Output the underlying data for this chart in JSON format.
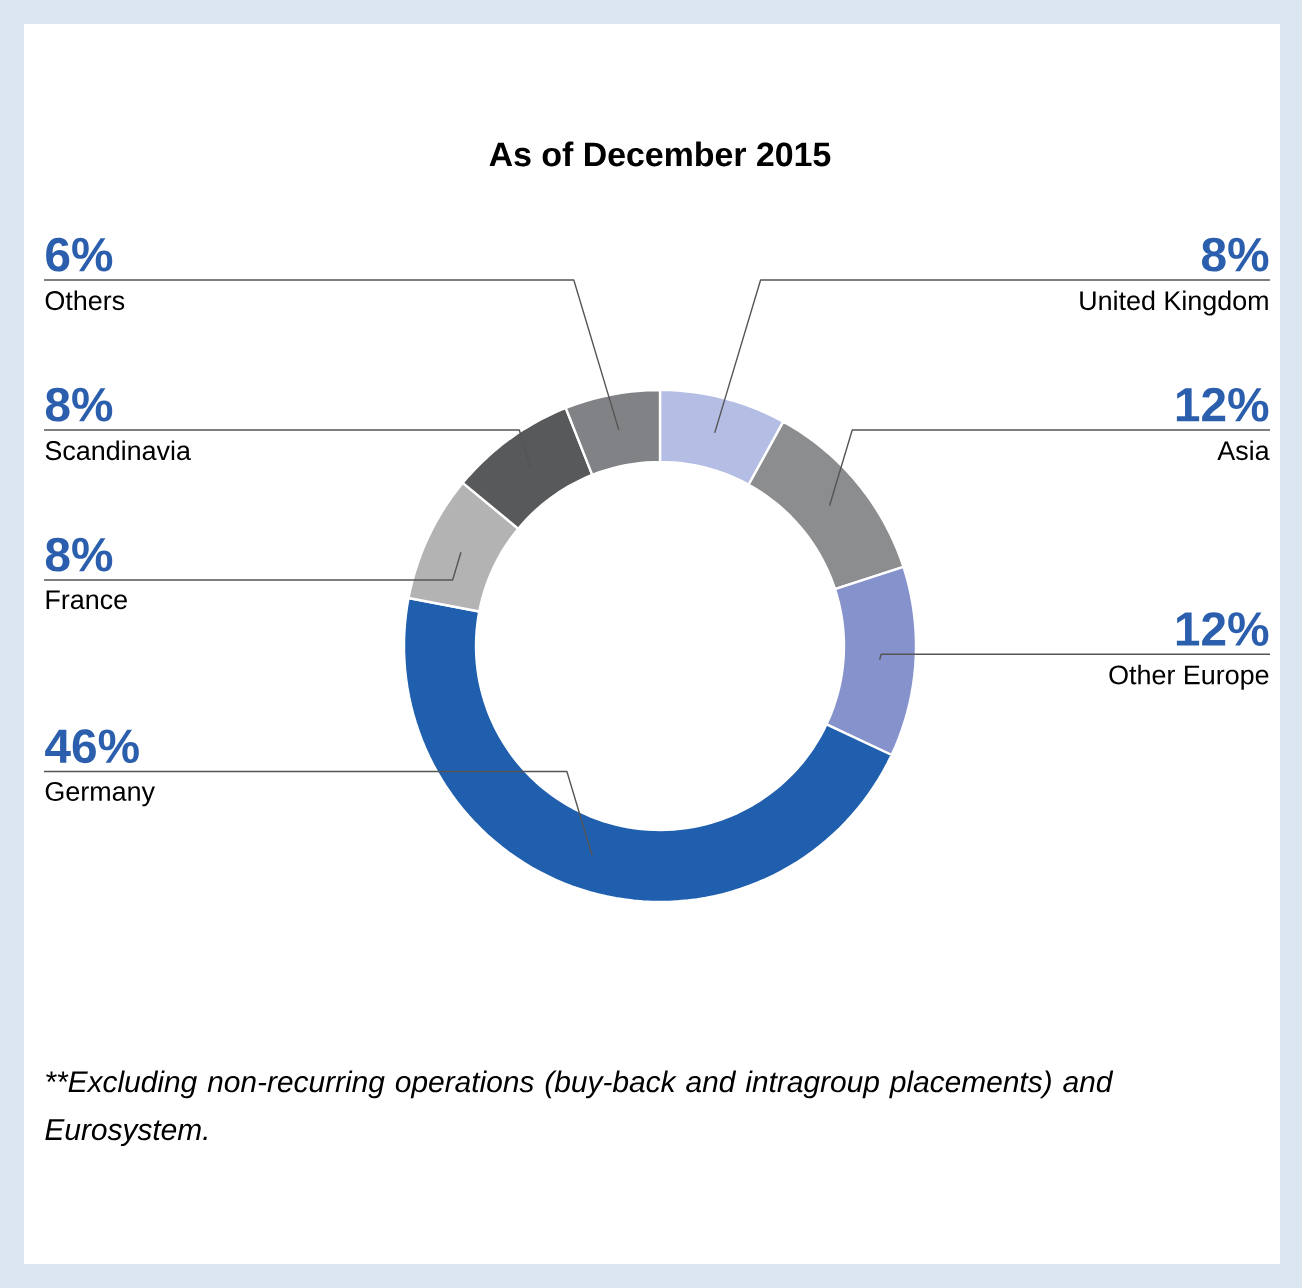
{
  "chart_data": {
    "type": "donut",
    "title": "As of December 2015",
    "categories": [
      "United Kingdom",
      "Asia",
      "Other Europe",
      "Germany",
      "France",
      "Scandinavia",
      "Others"
    ],
    "values": [
      8,
      12,
      12,
      46,
      8,
      8,
      6
    ],
    "value_labels": [
      "8%",
      "12%",
      "12%",
      "46%",
      "8%",
      "8%",
      "6%"
    ],
    "colors": [
      "#b4bde3",
      "#8c8d8f",
      "#8592cc",
      "#1f5fae",
      "#b3b3b3",
      "#58595b",
      "#808285"
    ],
    "annotations": [
      "**Excluding non-recurring operations (buy-back and intragroup placements) and Eurosystem."
    ]
  }
}
